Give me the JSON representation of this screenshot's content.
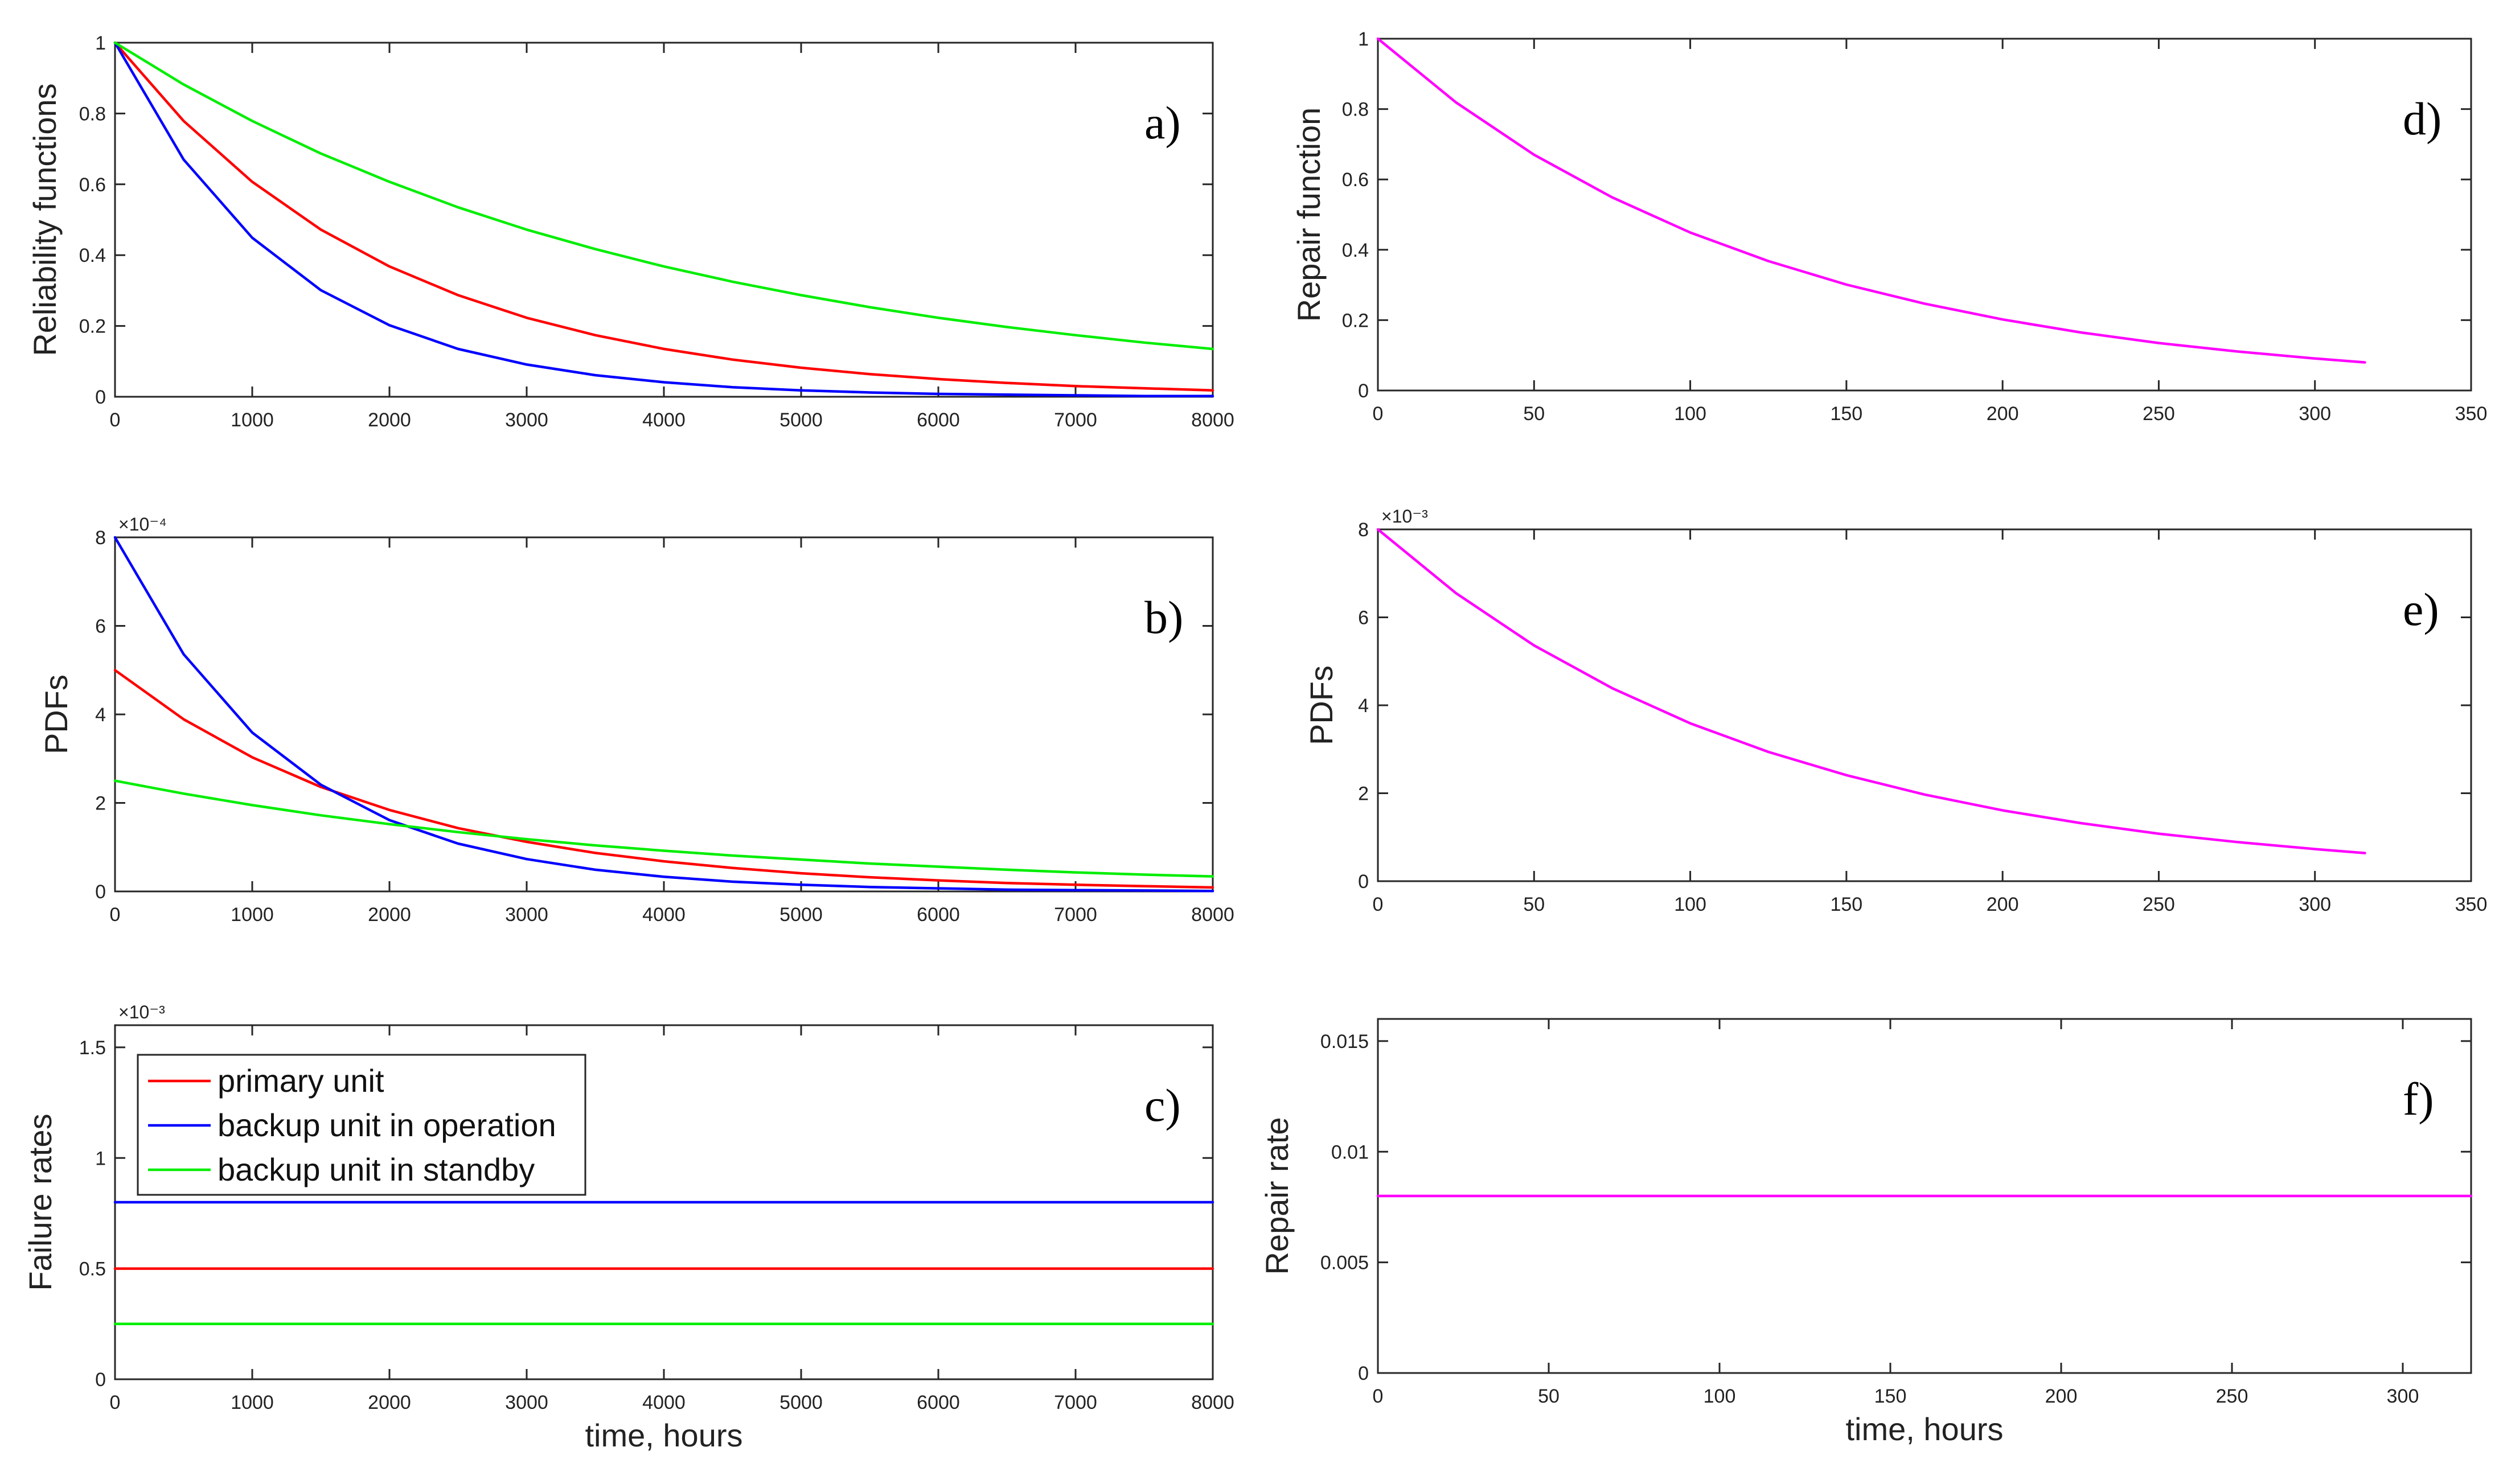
{
  "chart_data": [
    {
      "id": "a",
      "type": "line",
      "panel_label": "a)",
      "ylabel": "Reliability functions",
      "xlabel": "",
      "xlim": [
        0,
        8000
      ],
      "ylim": [
        0,
        1
      ],
      "xticks": [
        0,
        1000,
        2000,
        3000,
        4000,
        5000,
        6000,
        7000,
        8000
      ],
      "xtick_labels": [
        "0",
        "1000",
        "2000",
        "3000",
        "4000",
        "5000",
        "6000",
        "7000",
        "8000"
      ],
      "yticks": [
        0,
        0.2,
        0.4,
        0.6,
        0.8,
        1
      ],
      "ytick_labels": [
        "0",
        "0.2",
        "0.4",
        "0.6",
        "0.8",
        "1"
      ],
      "exponent": "",
      "series": [
        {
          "name": "primary unit",
          "color": "#ff0000",
          "x": [
            0,
            500,
            1000,
            1500,
            2000,
            2500,
            3000,
            3500,
            4000,
            4500,
            5000,
            5500,
            6000,
            6500,
            7000,
            7500,
            8000
          ],
          "y": [
            1,
            0.779,
            0.607,
            0.472,
            0.368,
            0.287,
            0.223,
            0.174,
            0.135,
            0.105,
            0.082,
            0.064,
            0.05,
            0.039,
            0.03,
            0.024,
            0.018
          ]
        },
        {
          "name": "backup unit in operation",
          "color": "#0000ff",
          "x": [
            0,
            500,
            1000,
            1500,
            2000,
            2500,
            3000,
            3500,
            4000,
            4500,
            5000,
            5500,
            6000,
            6500,
            7000,
            7500,
            8000
          ],
          "y": [
            1,
            0.67,
            0.449,
            0.301,
            0.202,
            0.135,
            0.091,
            0.061,
            0.041,
            0.027,
            0.018,
            0.012,
            0.008,
            0.006,
            0.004,
            0.002,
            0.002
          ]
        },
        {
          "name": "backup unit in standby",
          "color": "#00ee00",
          "x": [
            0,
            500,
            1000,
            1500,
            2000,
            2500,
            3000,
            3500,
            4000,
            4500,
            5000,
            5500,
            6000,
            6500,
            7000,
            7500,
            8000
          ],
          "y": [
            1,
            0.882,
            0.779,
            0.687,
            0.607,
            0.535,
            0.472,
            0.417,
            0.368,
            0.325,
            0.287,
            0.253,
            0.223,
            0.197,
            0.174,
            0.153,
            0.135
          ]
        }
      ]
    },
    {
      "id": "b",
      "type": "line",
      "panel_label": "b)",
      "ylabel": "PDFs",
      "xlabel": "",
      "xlim": [
        0,
        8000
      ],
      "ylim": [
        0,
        8
      ],
      "xticks": [
        0,
        1000,
        2000,
        3000,
        4000,
        5000,
        6000,
        7000,
        8000
      ],
      "xtick_labels": [
        "0",
        "1000",
        "2000",
        "3000",
        "4000",
        "5000",
        "6000",
        "7000",
        "8000"
      ],
      "yticks": [
        0,
        2,
        4,
        6,
        8
      ],
      "ytick_labels": [
        "0",
        "2",
        "4",
        "6",
        "8"
      ],
      "exponent": "×10⁻⁴",
      "series": [
        {
          "name": "primary unit",
          "color": "#ff0000",
          "x": [
            0,
            500,
            1000,
            1500,
            2000,
            2500,
            3000,
            3500,
            4000,
            4500,
            5000,
            5500,
            6000,
            6500,
            7000,
            7500,
            8000
          ],
          "y": [
            5,
            3.89,
            3.03,
            2.36,
            1.84,
            1.43,
            1.12,
            0.87,
            0.68,
            0.53,
            0.41,
            0.32,
            0.25,
            0.19,
            0.15,
            0.12,
            0.09
          ]
        },
        {
          "name": "backup unit in operation",
          "color": "#0000ff",
          "x": [
            0,
            500,
            1000,
            1500,
            2000,
            2500,
            3000,
            3500,
            4000,
            4500,
            5000,
            5500,
            6000,
            6500,
            7000,
            7500,
            8000
          ],
          "y": [
            8,
            5.36,
            3.59,
            2.41,
            1.61,
            1.08,
            0.73,
            0.49,
            0.33,
            0.22,
            0.15,
            0.1,
            0.07,
            0.04,
            0.03,
            0.02,
            0.01
          ]
        },
        {
          "name": "backup unit in standby",
          "color": "#00ee00",
          "x": [
            0,
            500,
            1000,
            1500,
            2000,
            2500,
            3000,
            3500,
            4000,
            4500,
            5000,
            5500,
            6000,
            6500,
            7000,
            7500,
            8000
          ],
          "y": [
            2.5,
            2.21,
            1.95,
            1.72,
            1.52,
            1.34,
            1.18,
            1.04,
            0.92,
            0.81,
            0.72,
            0.63,
            0.56,
            0.49,
            0.43,
            0.38,
            0.34
          ]
        }
      ]
    },
    {
      "id": "c",
      "type": "line",
      "panel_label": "c)",
      "ylabel": "Failure rates",
      "xlabel": "time, hours",
      "xlim": [
        0,
        8000
      ],
      "ylim": [
        0,
        1.6
      ],
      "xticks": [
        0,
        1000,
        2000,
        3000,
        4000,
        5000,
        6000,
        7000,
        8000
      ],
      "xtick_labels": [
        "0",
        "1000",
        "2000",
        "3000",
        "4000",
        "5000",
        "6000",
        "7000",
        "8000"
      ],
      "yticks": [
        0,
        0.5,
        1,
        1.5
      ],
      "ytick_labels": [
        "0",
        "0.5",
        "1",
        "1.5"
      ],
      "exponent": "×10⁻³",
      "legend": {
        "placement": "top-left",
        "entries": [
          "primary unit",
          "backup unit in operation",
          "backup unit in standby"
        ]
      },
      "series": [
        {
          "name": "primary unit",
          "color": "#ff0000",
          "x": [
            0,
            8000
          ],
          "y": [
            0.5,
            0.5
          ]
        },
        {
          "name": "backup unit in operation",
          "color": "#0000ff",
          "x": [
            0,
            8000
          ],
          "y": [
            0.8,
            0.8
          ]
        },
        {
          "name": "backup unit in standby",
          "color": "#00ee00",
          "x": [
            0,
            8000
          ],
          "y": [
            0.25,
            0.25
          ]
        }
      ]
    },
    {
      "id": "d",
      "type": "line",
      "panel_label": "d)",
      "ylabel": "Repair function",
      "xlabel": "",
      "xlim": [
        0,
        350
      ],
      "ylim": [
        0,
        1
      ],
      "xticks": [
        0,
        50,
        100,
        150,
        200,
        250,
        300,
        350
      ],
      "xtick_labels": [
        "0",
        "50",
        "100",
        "150",
        "200",
        "250",
        "300",
        "350"
      ],
      "yticks": [
        0,
        0.2,
        0.4,
        0.6,
        0.8,
        1
      ],
      "ytick_labels": [
        "0",
        "0.2",
        "0.4",
        "0.6",
        "0.8",
        "1"
      ],
      "exponent": "",
      "series": [
        {
          "name": "repair function",
          "color": "#ff00ff",
          "x": [
            0,
            25,
            50,
            75,
            100,
            125,
            150,
            175,
            200,
            225,
            250,
            275,
            300,
            316
          ],
          "y": [
            1,
            0.819,
            0.67,
            0.549,
            0.449,
            0.368,
            0.301,
            0.247,
            0.202,
            0.165,
            0.135,
            0.111,
            0.091,
            0.08
          ]
        }
      ]
    },
    {
      "id": "e",
      "type": "line",
      "panel_label": "e)",
      "ylabel": "PDFs",
      "xlabel": "",
      "xlim": [
        0,
        350
      ],
      "ylim": [
        0,
        8
      ],
      "xticks": [
        0,
        50,
        100,
        150,
        200,
        250,
        300,
        350
      ],
      "xtick_labels": [
        "0",
        "50",
        "100",
        "150",
        "200",
        "250",
        "300",
        "350"
      ],
      "yticks": [
        0,
        2,
        4,
        6,
        8
      ],
      "ytick_labels": [
        "0",
        "2",
        "4",
        "6",
        "8"
      ],
      "exponent": "×10⁻³",
      "series": [
        {
          "name": "repair PDF",
          "color": "#ff00ff",
          "x": [
            0,
            25,
            50,
            75,
            100,
            125,
            150,
            175,
            200,
            225,
            250,
            275,
            300,
            316
          ],
          "y": [
            8,
            6.55,
            5.36,
            4.39,
            3.59,
            2.94,
            2.41,
            1.97,
            1.61,
            1.32,
            1.08,
            0.89,
            0.73,
            0.64
          ]
        }
      ]
    },
    {
      "id": "f",
      "type": "line",
      "panel_label": "f)",
      "ylabel": "Repair rate",
      "xlabel": "time, hours",
      "xlim": [
        0,
        320
      ],
      "ylim": [
        0,
        0.016
      ],
      "xticks": [
        0,
        50,
        100,
        150,
        200,
        250,
        300
      ],
      "xtick_labels": [
        "0",
        "50",
        "100",
        "150",
        "200",
        "250",
        "300"
      ],
      "yticks": [
        0,
        0.005,
        0.01,
        0.015
      ],
      "ytick_labels": [
        "0",
        "0.005",
        "0.01",
        "0.015"
      ],
      "exponent": "",
      "series": [
        {
          "name": "repair rate",
          "color": "#ff00ff",
          "x": [
            0,
            320
          ],
          "y": [
            0.008,
            0.008
          ]
        }
      ]
    }
  ]
}
